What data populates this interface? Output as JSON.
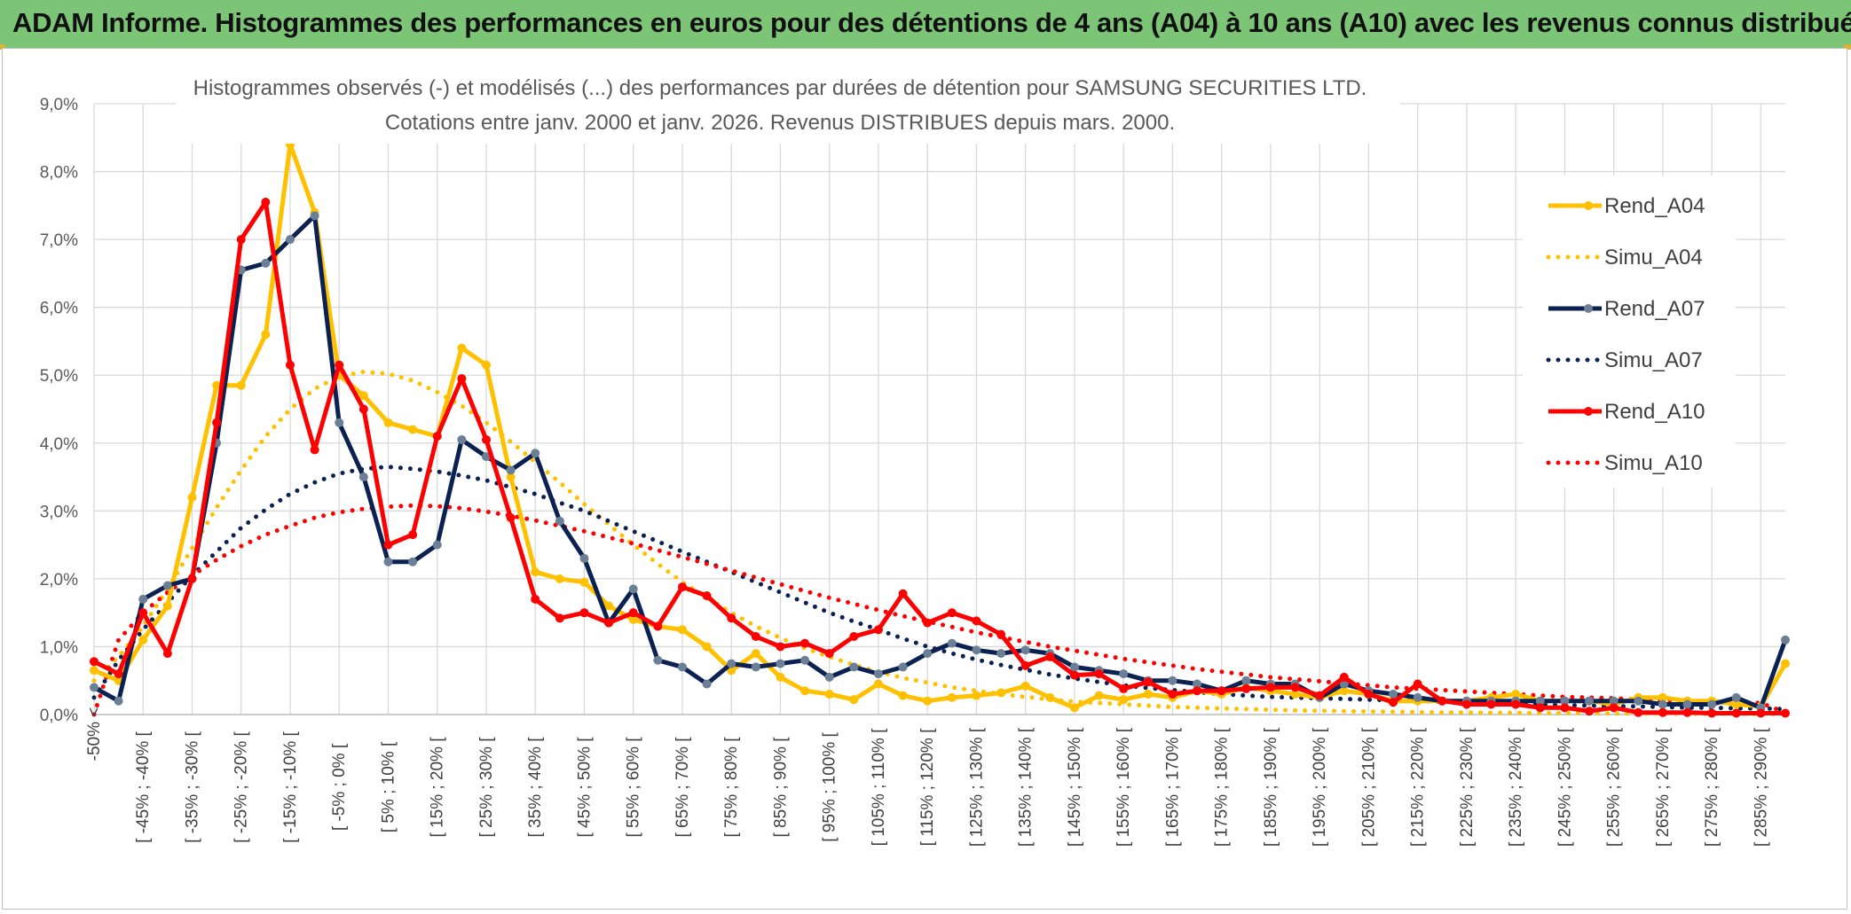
{
  "banner": {
    "title": "ADAM Informe. Histogrammes des performances en euros pour des détentions de 4 ans (A04) à 10 ans (A10) avec les revenus connus distribués"
  },
  "colors": {
    "banner_bg": "#7cc576",
    "a04": "#ffc000",
    "a07": "#0b2152",
    "a10": "#ff0000",
    "grid": "#d9d9d9"
  },
  "chart_data": {
    "type": "line",
    "title": [
      "Histogrammes observés (-) et modélisés (...) des performances par durées de détention pour SAMSUNG SECURITIES LTD.",
      "Cotations entre janv. 2000 et janv. 2026. Revenus DISTRIBUES depuis mars. 2000."
    ],
    "ylim": [
      0,
      9
    ],
    "yticks": [
      0,
      1,
      2,
      3,
      4,
      5,
      6,
      7,
      8,
      9
    ],
    "ytick_labels": [
      "0,0%",
      "1,0%",
      "2,0%",
      "3,0%",
      "4,0%",
      "5,0%",
      "6,0%",
      "7,0%",
      "8,0%",
      "9,0%"
    ],
    "x_tick_labels": [
      "-50% <",
      "[ -45% ; -40% [",
      "[ -35% ; -30% [",
      "[ -25% ; -20% [",
      "[ -15% ; -10% [",
      "[ -5% ; 0% [",
      "[ 5% ; 10% [",
      "[ 15% ; 20% [",
      "[ 25% ; 30% [",
      "[ 35% ; 40% [",
      "[ 45% ; 50% [",
      "[ 55% ; 60% [",
      "[ 65% ; 70% [",
      "[ 75% ; 80% [",
      "[ 85% ; 90% [",
      "[ 95% ; 100% [",
      "[ 105% ; 110% [",
      "[ 115% ; 120% [",
      "[ 125% ; 130% [",
      "[ 135% ; 140% [",
      "[ 145% ; 150% [",
      "[ 155% ; 160% [",
      "[ 165% ; 170% [",
      "[ 175% ; 180% [",
      "[ 185% ; 190% [",
      "[ 195% ; 200% [",
      "[ 205% ; 210% [",
      "[ 215% ; 220% [",
      "[ 225% ; 230% [",
      "[ 235% ; 240% [",
      "[ 245% ; 250% [",
      "[ 255% ; 260% [",
      "[ 265% ; 270% [",
      "[ 275% ; 280% [",
      "[ 285% ; 290% ["
    ],
    "n_points": 70,
    "series": [
      {
        "name": "Rend_A04",
        "style": "solid",
        "color": "#ffc000",
        "values": [
          0.65,
          0.5,
          1.1,
          1.6,
          3.2,
          4.85,
          4.85,
          5.6,
          8.4,
          7.4,
          5.0,
          4.7,
          4.3,
          4.2,
          4.1,
          5.4,
          5.15,
          3.5,
          2.1,
          2.0,
          1.95,
          1.6,
          1.4,
          1.3,
          1.25,
          1.0,
          0.65,
          0.9,
          0.55,
          0.35,
          0.3,
          0.22,
          0.45,
          0.28,
          0.2,
          0.25,
          0.28,
          0.32,
          0.42,
          0.25,
          0.1,
          0.28,
          0.22,
          0.3,
          0.25,
          0.35,
          0.3,
          0.4,
          0.35,
          0.3,
          0.25,
          0.35,
          0.3,
          0.2,
          0.2,
          0.2,
          0.2,
          0.25,
          0.3,
          0.2,
          0.2,
          0.2,
          0.15,
          0.25,
          0.25,
          0.2,
          0.2,
          0.15,
          0.12,
          0.75
        ]
      },
      {
        "name": "Simu_A04",
        "style": "dotted",
        "color": "#ffc000",
        "values": [
          0.5,
          0.85,
          1.3,
          1.85,
          2.45,
          3.05,
          3.6,
          4.1,
          4.5,
          4.8,
          4.98,
          5.05,
          5.02,
          4.92,
          4.75,
          4.55,
          4.3,
          4.02,
          3.72,
          3.42,
          3.1,
          2.8,
          2.5,
          2.22,
          1.95,
          1.72,
          1.5,
          1.3,
          1.13,
          0.98,
          0.85,
          0.73,
          0.63,
          0.54,
          0.47,
          0.4,
          0.35,
          0.3,
          0.26,
          0.22,
          0.19,
          0.17,
          0.15,
          0.13,
          0.11,
          0.1,
          0.09,
          0.08,
          0.07,
          0.06,
          0.055,
          0.05,
          0.045,
          0.04,
          0.035,
          0.03,
          0.03,
          0.025,
          0.025,
          0.02,
          0.02,
          0.02,
          0.015,
          0.015,
          0.015,
          0.01,
          0.01,
          0.01,
          0.01,
          0.01
        ]
      },
      {
        "name": "Rend_A07",
        "style": "solid",
        "color": "#0b2152",
        "values": [
          0.4,
          0.2,
          1.7,
          1.9,
          2.0,
          4.0,
          6.55,
          6.65,
          7.0,
          7.35,
          4.3,
          3.5,
          2.25,
          2.25,
          2.5,
          4.05,
          3.8,
          3.6,
          3.85,
          2.85,
          2.3,
          1.35,
          1.85,
          0.8,
          0.7,
          0.45,
          0.75,
          0.7,
          0.75,
          0.8,
          0.55,
          0.7,
          0.6,
          0.7,
          0.9,
          1.05,
          0.95,
          0.9,
          0.95,
          0.9,
          0.7,
          0.65,
          0.6,
          0.5,
          0.5,
          0.45,
          0.35,
          0.5,
          0.45,
          0.45,
          0.25,
          0.45,
          0.35,
          0.3,
          0.25,
          0.2,
          0.2,
          0.2,
          0.2,
          0.2,
          0.2,
          0.2,
          0.2,
          0.2,
          0.15,
          0.15,
          0.15,
          0.25,
          0.1,
          1.1
        ]
      },
      {
        "name": "Simu_A07",
        "style": "dotted",
        "color": "#0b2152",
        "values": [
          0.25,
          0.8,
          1.25,
          1.65,
          2.05,
          2.4,
          2.75,
          3.02,
          3.25,
          3.42,
          3.55,
          3.62,
          3.65,
          3.62,
          3.58,
          3.52,
          3.45,
          3.35,
          3.25,
          3.12,
          3.0,
          2.85,
          2.7,
          2.55,
          2.4,
          2.25,
          2.1,
          1.95,
          1.8,
          1.65,
          1.5,
          1.37,
          1.25,
          1.12,
          1.0,
          0.9,
          0.81,
          0.73,
          0.66,
          0.59,
          0.53,
          0.48,
          0.43,
          0.39,
          0.36,
          0.33,
          0.3,
          0.28,
          0.26,
          0.25,
          0.24,
          0.23,
          0.22,
          0.21,
          0.2,
          0.19,
          0.18,
          0.17,
          0.16,
          0.15,
          0.14,
          0.13,
          0.12,
          0.12,
          0.11,
          0.1,
          0.1,
          0.09,
          0.09,
          0.08
        ]
      },
      {
        "name": "Rend_A10",
        "style": "solid",
        "color": "#ff0000",
        "values": [
          0.78,
          0.6,
          1.5,
          0.9,
          2.0,
          4.3,
          7.0,
          7.55,
          5.15,
          3.9,
          5.15,
          4.5,
          2.5,
          2.65,
          4.1,
          4.95,
          4.05,
          2.9,
          1.7,
          1.42,
          1.5,
          1.35,
          1.5,
          1.3,
          1.88,
          1.75,
          1.42,
          1.15,
          1.0,
          1.05,
          0.9,
          1.15,
          1.25,
          1.78,
          1.35,
          1.5,
          1.38,
          1.18,
          0.72,
          0.85,
          0.58,
          0.6,
          0.38,
          0.48,
          0.3,
          0.35,
          0.35,
          0.38,
          0.4,
          0.4,
          0.28,
          0.55,
          0.3,
          0.18,
          0.45,
          0.2,
          0.15,
          0.15,
          0.15,
          0.1,
          0.1,
          0.05,
          0.1,
          0.03,
          0.03,
          0.03,
          0.02,
          0.02,
          0.02,
          0.02
        ]
      },
      {
        "name": "Simu_A10",
        "style": "dotted",
        "color": "#ff0000",
        "values": [
          0.0,
          1.1,
          1.5,
          1.8,
          2.05,
          2.28,
          2.48,
          2.65,
          2.78,
          2.9,
          2.98,
          3.03,
          3.06,
          3.08,
          3.07,
          3.04,
          2.99,
          2.93,
          2.86,
          2.78,
          2.7,
          2.61,
          2.52,
          2.42,
          2.32,
          2.22,
          2.12,
          2.02,
          1.92,
          1.82,
          1.72,
          1.63,
          1.54,
          1.45,
          1.37,
          1.29,
          1.21,
          1.14,
          1.07,
          1.0,
          0.94,
          0.88,
          0.82,
          0.77,
          0.72,
          0.67,
          0.63,
          0.59,
          0.55,
          0.52,
          0.49,
          0.46,
          0.43,
          0.4,
          0.38,
          0.36,
          0.34,
          0.32,
          0.3,
          0.28,
          0.26,
          0.25,
          0.24,
          0.22,
          0.21,
          0.2,
          0.19,
          0.18,
          0.17,
          0.03
        ]
      }
    ],
    "legend": [
      "Rend_A04",
      "Simu_A04",
      "Rend_A07",
      "Simu_A07",
      "Rend_A10",
      "Simu_A10"
    ],
    "legend_position": "right",
    "grid": true
  }
}
